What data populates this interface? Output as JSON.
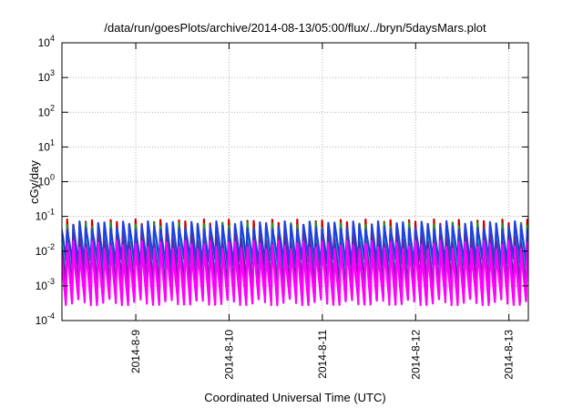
{
  "chart_data": {
    "type": "line",
    "title": "/data/run/goesPlots/archive/2014-08-13/05:00/flux/../bryn/5daysMars.plot",
    "xlabel": "Coordinated Universal Time (UTC)",
    "ylabel": "cGy/day",
    "y_scale": "log",
    "ylim": [
      0.0001,
      10000
    ],
    "xlim": [
      "2014-08-08 05:00",
      "2014-08-13 05:00"
    ],
    "y_ticks": [
      {
        "base": "10",
        "exp": "-4"
      },
      {
        "base": "10",
        "exp": "-3"
      },
      {
        "base": "10",
        "exp": "-2"
      },
      {
        "base": "10",
        "exp": "-1"
      },
      {
        "base": "10",
        "exp": "0"
      },
      {
        "base": "10",
        "exp": "1"
      },
      {
        "base": "10",
        "exp": "2"
      },
      {
        "base": "10",
        "exp": "3"
      },
      {
        "base": "10",
        "exp": "4"
      }
    ],
    "x_ticks": [
      "2014-8-9",
      "2014-8-10",
      "2014-8-11",
      "2014-8-12",
      "2014-8-13"
    ],
    "x_tick_dates": [
      "2014-08-09 00:00",
      "2014-08-10 00:00",
      "2014-08-11 00:00",
      "2014-08-12 00:00",
      "2014-08-13 00:00"
    ],
    "grid": true,
    "cycle_hours": 1.6,
    "series": [
      {
        "color": "#cc0000",
        "values": {
          "peak": 0.062,
          "trough": 0.00045
        }
      },
      {
        "color": "#1a9c2e",
        "values": {
          "peak": 0.05,
          "trough": 0.00075
        }
      },
      {
        "color": "#00c8c8",
        "values": {
          "peak": 0.04,
          "trough": 0.0016
        }
      },
      {
        "color": "#2040e0",
        "values": {
          "peak": 0.055,
          "trough": 0.005
        }
      },
      {
        "color": "#5a2aa0",
        "values": {
          "peak": 0.022,
          "trough": 0.0012
        }
      },
      {
        "color": "#ff00ff",
        "values": {
          "peak": 0.015,
          "trough": 0.00045
        }
      },
      {
        "color": "#ff00ff",
        "values": {
          "peak": 0.01,
          "trough": 0.00035
        }
      }
    ]
  }
}
